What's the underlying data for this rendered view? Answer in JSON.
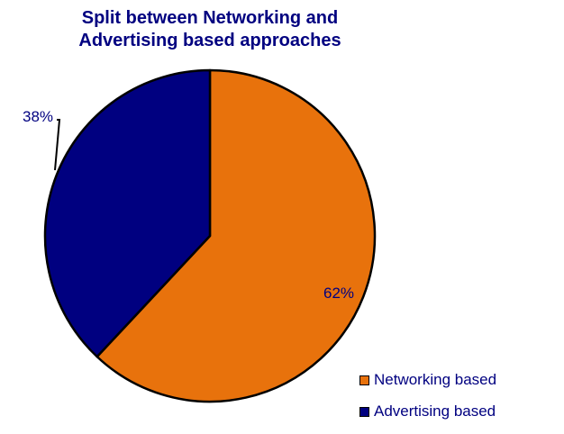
{
  "chart_data": {
    "type": "pie",
    "title_line1": "Split between Networking and",
    "title_line2": "Advertising based approaches",
    "slices": [
      {
        "label": "Networking based",
        "value": 62,
        "display": "62%",
        "color": "#E8720C"
      },
      {
        "label": "Advertising based",
        "value": 38,
        "display": "38%",
        "color": "#000080"
      }
    ],
    "legend_placement": "bottom-right"
  }
}
